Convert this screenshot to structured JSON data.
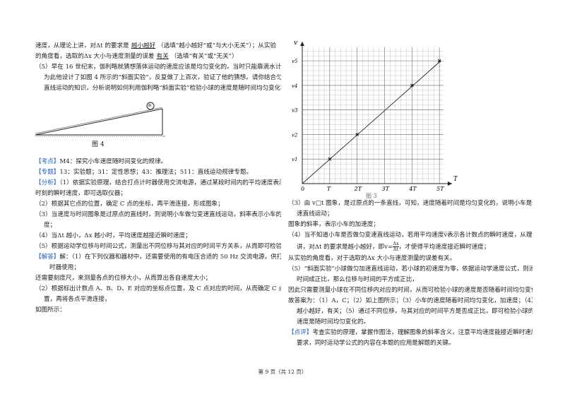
{
  "left": {
    "lines": [
      "速度，从理论上讲，对Δt 的要求是",
      "越小越好",
      "（选填“越小越好”或“与大小无关”）；从实验",
      "的角度看，选取的Δx 大小与速度测量的误差",
      "有关",
      "（选填“有关”或“无关”）",
      "（5）早在 16 世纪末，伽利略就猜想落体运动的速度应该是均匀变化的。当时只能靠滴水计时，",
      "为此他设计了如图 4 所示的“斜面实验”，反复做了上百次，验证了他的猜想。请你结合匀变速",
      "直线运动的知识，分析说明如何利用伽利略“斜面实验”检验小球的速度是随时间均匀变化的。",
      "图 4",
      "【考点】",
      "M4：探究小车速度随时间变化的规律。",
      "【专题】",
      "13：实验题；31：定性思想；43：推理法；511：直线运动规律专题。",
      "【分析】",
      "（1）依据实验原理，结合打点计时器使用交流电源，通过某段时间内的平均速度表示中",
      "时刻的瞬时速度，即可选取仪器；",
      "（2）根据其它点的位置，确定 C 点的坐标，再平滑连接，形成图象；",
      "（3）当速度与时间图象是过原点的直线时，则说明小车做匀变速直线运动，斜率表示小车的加速",
      "度；",
      "（4）当Δt 越小，Δx 越小时，平均速度越接近瞬时速度；",
      "（5）根据运动学位移与时间公式，测量出不同位移与其对应的时间平方关系，从而即可检验。",
      "【解答】",
      "解：（1）在下列仪器和器材中，还需要使用的有电压合适的 50 Hz 交流电源，供打点计",
      "时器使用；",
      "还需要刻度尺，来测量各点的位移大小，从而算出各自速度大小；",
      "（2）根据标出计数点 A、B、D、E 对应的坐标点位置，及 C 点对应的时间，从而确定 C 点的位",
      "置，再将各点平滑连接，",
      "如图所示："
    ]
  },
  "right": {
    "lines": [
      "（3）由 v□t 图象，是过原点的一条直线，可知，速度随着时间是均匀变化的，说明小车是做匀变",
      "速直线运动；",
      "图象的斜率，表示小车的加速度；",
      "（4）当不知道小车是否做匀变速直线运动，若用平均速度",
      "表示各计数点的瞬时速度，从理论上",
      "讲，对Δt 的要求是越小越好，即",
      "，才使得平均速度接近瞬时速度；",
      "从实验的角度看，对于选取的Δx 大小与速度测量的误差有关。",
      "（5）“斜面实验”小球做匀加速直线运动，若小球的初速度为零，依据运动学速度公式，则速度与",
      "时间成正比，那么位移与时间的平方成正比，",
      "因此只需要测量小球在不同位移内对应的时间，从而可检验小球的速度是否随着时间均匀变化。",
      "故答案为：（1）A，C；（2）如上图所示；（3）小车的速度随着时间均匀变化，加速度；（4）",
      "越小越好，有关；（5）通过不同位移，与其对应的时间平方是否成正比，即可检验小球的",
      "速度是随时间均匀变化的。",
      "【点评】",
      "考查实验的原理，掌握作图法，理解图象的斜率含义，注意平均速度能接近瞬时速度的",
      "要求，同时运动学公式的内容在本题的应用是解题的关键。"
    ],
    "frac_num": "Δx",
    "frac_den": "Δt",
    "frac_prefix": "v=",
    "bar_v": "v̅"
  },
  "chart_data": {
    "type": "line",
    "title": "",
    "xlabel": "T",
    "ylabel": "v",
    "origin_label": "0",
    "x_ticks": [
      "T",
      "2T",
      "3T",
      "4T",
      "5T"
    ],
    "y_ticks": [
      "v1",
      "v2",
      "v3",
      "v4",
      "v5"
    ],
    "x_tick_values": [
      1,
      2,
      3,
      4,
      5
    ],
    "y_tick_values": [
      1,
      2,
      3,
      4,
      5
    ],
    "points": [
      {
        "x": 1,
        "y": 1.0
      },
      {
        "x": 2,
        "y": 2.0
      },
      {
        "x": 4,
        "y": 4.0
      },
      {
        "x": 5,
        "y": 5.0
      }
    ],
    "fit_line": {
      "x": [
        0,
        5.05
      ],
      "y": [
        0,
        5.0
      ]
    },
    "grid": true,
    "caption": "图 3"
  },
  "footer": "第 9 页（共 12 页）"
}
